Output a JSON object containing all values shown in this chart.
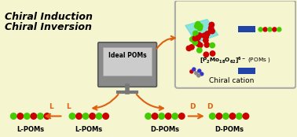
{
  "bg_color": "#F5F5D0",
  "title_line1": "Chiral Induction",
  "title_line2": "Chiral Inversion",
  "title_color": "#000000",
  "arrow_color": "#E06010",
  "green_color": "#44CC00",
  "red_color": "#CC0000",
  "blue_color": "#2244AA",
  "cyan_color": "#44CCCC",
  "ideal_text": "Ideal POMs",
  "box_label2": "Chiral cation",
  "l_label": "L-POMs",
  "d_label": "D-POMs"
}
